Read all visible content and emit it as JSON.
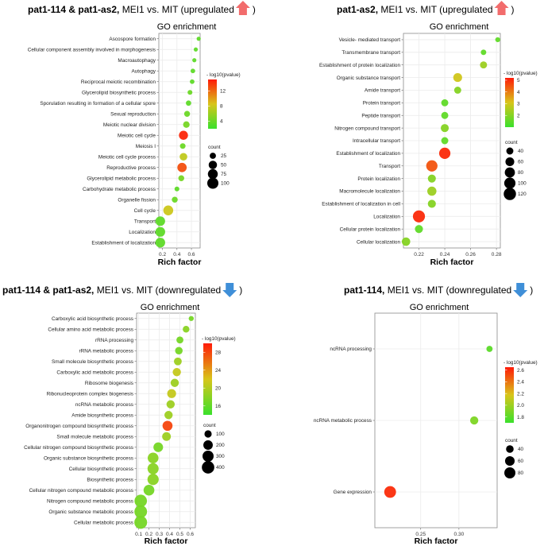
{
  "colors": {
    "low": "#3ae02c",
    "mid": "#d8c51a",
    "high": "#ff1a08",
    "grid": "#ebebeb",
    "up_arrow": "#f26c6c",
    "down_arrow": "#3f8fd8"
  },
  "common": {
    "go_title": "GO enrichment",
    "xlabel": "Rich factor",
    "color_legend_title": "- log10(pvalue)",
    "size_legend_title": "count"
  },
  "chart_data": [
    {
      "type": "scatter",
      "panel": "top-left",
      "title_bold": "pat1-114 & pat1-as2,",
      "title_rest": " MEI1 vs. MIT (upregulated",
      "title_close": ")",
      "arrow": "up",
      "xlabel": "Rich factor",
      "xlim": [
        0.15,
        0.72
      ],
      "xticks": [
        "0.2",
        "0.4",
        "0.6"
      ],
      "xtick_values": [
        0.2,
        0.4,
        0.6
      ],
      "terms": [
        "Ascospore formation",
        "Cellular component assembly involved in morphogenesis",
        "Macroautophagy",
        "Autophagy",
        "Reciprocal meiotic recombination",
        "Glycerolipid biosynthetic process",
        "Sporulation resulting in formation of a cellular spore",
        "Sexual reproduction",
        "Meiotic nuclear division",
        "Meiotic cell cycle",
        "Meiosis I",
        "Meiotic cell cycle process",
        "Reproductive process",
        "Glycerolipid metabolic process",
        "Carbohydrate metabolic process",
        "Organelle fission",
        "Cell cycle",
        "Transport",
        "Localization",
        "Establishment of localization"
      ],
      "rich_factor": [
        0.7,
        0.66,
        0.64,
        0.62,
        0.61,
        0.58,
        0.56,
        0.54,
        0.53,
        0.49,
        0.48,
        0.49,
        0.47,
        0.46,
        0.4,
        0.37,
        0.28,
        0.17,
        0.17,
        0.17
      ],
      "log_p": [
        3.5,
        3.5,
        3.5,
        3.5,
        3.5,
        4.0,
        3.5,
        4.0,
        4.5,
        14.5,
        4.0,
        7.5,
        13.0,
        4.5,
        3.5,
        4.0,
        8.0,
        3.5,
        3.5,
        3.5
      ],
      "count": [
        12,
        12,
        12,
        14,
        14,
        15,
        18,
        22,
        28,
        60,
        20,
        40,
        65,
        22,
        15,
        22,
        75,
        70,
        72,
        72
      ],
      "color_range": [
        2,
        15
      ],
      "color_ticks": [
        "4",
        "8",
        "12"
      ],
      "color_tick_values": [
        4,
        8,
        12
      ],
      "size_range": [
        10,
        110
      ],
      "size_ticks": [
        "25",
        "50",
        "75",
        "100"
      ],
      "size_tick_values": [
        25,
        50,
        75,
        100
      ]
    },
    {
      "type": "scatter",
      "panel": "top-right",
      "title_bold": "pat1-as2,",
      "title_rest": " MEI1 vs. MIT (upregulated",
      "title_close": ")",
      "arrow": "up",
      "xlabel": "Rich factor",
      "xlim": [
        0.208,
        0.283
      ],
      "xticks": [
        "0.22",
        "0.24",
        "0.26",
        "0.28"
      ],
      "xtick_values": [
        0.22,
        0.24,
        0.26,
        0.28
      ],
      "terms": [
        "Vesicle- mediated transport",
        "Transmembrane transport",
        "Establishment of protein localization",
        "Organic substance transport",
        "Amide transport",
        "Protein transport",
        "Peptide transport",
        "Nitrogen compound transport",
        "Intracellular transport",
        "Establishment of localization",
        "Transport",
        "Protein localization",
        "Macromolecule localization",
        "Establishment of localization in cell",
        "Localization",
        "Cellular protein localization",
        "Cellular localization"
      ],
      "rich_factor": [
        0.281,
        0.27,
        0.27,
        0.25,
        0.25,
        0.24,
        0.24,
        0.24,
        0.24,
        0.24,
        0.23,
        0.23,
        0.23,
        0.23,
        0.22,
        0.22,
        0.21
      ],
      "log_p": [
        1.5,
        1.5,
        2.3,
        3.0,
        2.0,
        1.5,
        1.5,
        2.0,
        1.5,
        5.0,
        4.5,
        2.0,
        2.3,
        2.0,
        5.0,
        1.5,
        2.0
      ],
      "count": [
        25,
        28,
        40,
        60,
        40,
        40,
        40,
        50,
        40,
        100,
        100,
        50,
        65,
        50,
        115,
        50,
        55
      ],
      "color_range": [
        1,
        5.2
      ],
      "color_ticks": [
        "2",
        "3",
        "4",
        "5"
      ],
      "color_tick_values": [
        2,
        3,
        4,
        5
      ],
      "size_range": [
        20,
        140
      ],
      "size_ticks": [
        "40",
        "60",
        "80",
        "100",
        "120"
      ],
      "size_tick_values": [
        40,
        60,
        80,
        100,
        120
      ]
    },
    {
      "type": "scatter",
      "panel": "bottom-left",
      "title_bold": "pat1-114 & pat1-as2,",
      "title_rest": " MEI1 vs. MIT (downregulated",
      "title_close": ")",
      "arrow": "down",
      "xlabel": "Rich factor",
      "xlim": [
        0.08,
        0.65
      ],
      "xticks": [
        "0.1",
        "0.2",
        "0.3",
        "0.4",
        "0.5",
        "0.6"
      ],
      "xtick_values": [
        0.1,
        0.2,
        0.3,
        0.4,
        0.5,
        0.6
      ],
      "terms": [
        "Carboxylic acid biosynthetic process",
        "Cellular amino acid metabolic process",
        "rRNA processing",
        "rRNA metabolic process",
        "Small molecule biosynthetic process",
        "Carboxylic acid metabolic process",
        "Ribosome biogenesis",
        "Ribonucleoprotein complex biogenesis",
        "ncRNA metabolic process",
        "Amide biosynthetic process",
        "Organonitrogen compound biosynthetic process",
        "Small molecule metabolic process",
        "Cellular nitrogen compound biosynthetic process",
        "Organic substance biosynthetic process",
        "Cellular biosynthetic process",
        "Biosynthetic process",
        "Cellular nitrogen compound metabolic process",
        "Nitrogen compound metabolic process",
        "Organic substance metabolic process",
        "Cellular metabolic process"
      ],
      "rich_factor": [
        0.61,
        0.56,
        0.5,
        0.49,
        0.48,
        0.47,
        0.45,
        0.42,
        0.41,
        0.39,
        0.38,
        0.37,
        0.29,
        0.24,
        0.24,
        0.24,
        0.2,
        0.12,
        0.12,
        0.12
      ],
      "log_p": [
        17,
        18,
        17,
        17,
        19,
        21,
        19,
        21,
        19,
        19,
        28,
        19,
        17,
        18,
        18,
        18,
        17,
        17,
        17,
        17
      ],
      "count": [
        40,
        80,
        90,
        110,
        120,
        140,
        140,
        170,
        140,
        140,
        230,
        160,
        210,
        280,
        300,
        310,
        280,
        400,
        420,
        430
      ],
      "color_range": [
        14,
        30
      ],
      "color_ticks": [
        "16",
        "20",
        "24",
        "28"
      ],
      "color_tick_values": [
        16,
        20,
        24,
        28
      ],
      "size_range": [
        20,
        460
      ],
      "size_ticks": [
        "100",
        "200",
        "300",
        "400"
      ],
      "size_tick_values": [
        100,
        200,
        300,
        400
      ]
    },
    {
      "type": "scatter",
      "panel": "bottom-right",
      "title_bold": "pat1-114,",
      "title_rest": " MEI1 vs. MIT (downregulated",
      "title_close": ")",
      "arrow": "down",
      "xlabel": "Rich factor",
      "xlim": [
        0.19,
        0.35
      ],
      "xticks": [
        "0.25",
        "0.30"
      ],
      "xtick_values": [
        0.25,
        0.3
      ],
      "terms": [
        "ncRNA processing",
        "ncRNA metabolic process",
        "Gene expression"
      ],
      "rich_factor": [
        0.34,
        0.32,
        0.21
      ],
      "log_p": [
        1.8,
        1.9,
        2.6
      ],
      "count": [
        30,
        45,
        90
      ],
      "color_range": [
        1.7,
        2.65
      ],
      "color_ticks": [
        "1.8",
        "2.0",
        "2.2",
        "2.4",
        "2.6"
      ],
      "color_tick_values": [
        1.8,
        2.0,
        2.2,
        2.4,
        2.6
      ],
      "size_range": [
        20,
        100
      ],
      "size_ticks": [
        "40",
        "60",
        "80"
      ],
      "size_tick_values": [
        40,
        60,
        80
      ]
    }
  ]
}
